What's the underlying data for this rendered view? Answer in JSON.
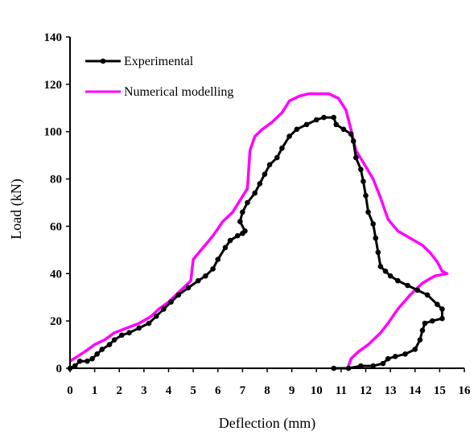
{
  "chart_data": {
    "type": "line",
    "title": "",
    "xlabel": "Deflection (mm)",
    "ylabel": "Load (kN)",
    "xlim": [
      0,
      16
    ],
    "ylim": [
      0,
      140
    ],
    "xticks": [
      "0",
      "1",
      "2",
      "3",
      "4",
      "5",
      "6",
      "7",
      "8",
      "9",
      "10",
      "11",
      "12",
      "13",
      "14",
      "15",
      "16"
    ],
    "yticks": [
      "0",
      "20",
      "40",
      "60",
      "80",
      "100",
      "120",
      "140"
    ],
    "grid": false,
    "legend_position": "top-left",
    "series": [
      {
        "name": "Experimental",
        "color": "#000000",
        "marker": "circle",
        "points": [
          [
            0,
            0
          ],
          [
            0.2,
            1
          ],
          [
            0.4,
            3
          ],
          [
            0.7,
            3
          ],
          [
            0.9,
            4
          ],
          [
            1.1,
            6
          ],
          [
            1.3,
            8
          ],
          [
            1.6,
            10
          ],
          [
            1.8,
            12
          ],
          [
            2.1,
            14
          ],
          [
            2.4,
            15
          ],
          [
            2.8,
            17
          ],
          [
            3.2,
            19
          ],
          [
            3.5,
            22
          ],
          [
            3.8,
            25
          ],
          [
            4.1,
            28
          ],
          [
            4.4,
            31
          ],
          [
            4.8,
            34
          ],
          [
            5.2,
            37
          ],
          [
            5.5,
            39
          ],
          [
            5.8,
            42
          ],
          [
            6.0,
            46
          ],
          [
            6.3,
            51
          ],
          [
            6.5,
            54
          ],
          [
            6.8,
            56
          ],
          [
            7.0,
            57
          ],
          [
            7.1,
            58
          ],
          [
            6.9,
            62
          ],
          [
            7.0,
            66
          ],
          [
            7.2,
            70
          ],
          [
            7.5,
            74
          ],
          [
            7.7,
            78
          ],
          [
            7.9,
            82
          ],
          [
            8.1,
            86
          ],
          [
            8.4,
            89
          ],
          [
            8.6,
            93
          ],
          [
            8.9,
            98
          ],
          [
            9.2,
            101
          ],
          [
            9.6,
            103
          ],
          [
            10.0,
            105
          ],
          [
            10.3,
            106
          ],
          [
            10.7,
            106
          ],
          [
            10.8,
            103
          ],
          [
            11.1,
            101
          ],
          [
            11.4,
            99
          ],
          [
            11.5,
            96
          ],
          [
            11.6,
            89
          ],
          [
            11.8,
            84
          ],
          [
            11.9,
            79
          ],
          [
            12.0,
            73
          ],
          [
            12.1,
            66
          ],
          [
            12.3,
            61
          ],
          [
            12.4,
            55
          ],
          [
            12.5,
            49
          ],
          [
            12.6,
            43
          ],
          [
            12.8,
            41
          ],
          [
            13.0,
            39
          ],
          [
            13.3,
            37
          ],
          [
            13.7,
            35
          ],
          [
            14.1,
            33
          ],
          [
            14.5,
            31
          ],
          [
            14.9,
            27
          ],
          [
            15.1,
            25
          ],
          [
            15.1,
            21
          ],
          [
            14.7,
            20
          ],
          [
            14.4,
            19
          ],
          [
            14.3,
            16
          ],
          [
            14.2,
            12
          ],
          [
            14.0,
            8
          ],
          [
            13.6,
            6
          ],
          [
            13.2,
            5
          ],
          [
            12.9,
            4
          ],
          [
            12.7,
            2
          ],
          [
            12.3,
            1
          ],
          [
            11.8,
            1
          ],
          [
            11.3,
            0
          ],
          [
            10.7,
            0
          ]
        ]
      },
      {
        "name": "Numerical modelling",
        "color": "#ff00ff",
        "marker": "none",
        "points": [
          [
            0,
            3
          ],
          [
            0.3,
            5
          ],
          [
            0.6,
            7
          ],
          [
            1.0,
            10
          ],
          [
            1.4,
            12
          ],
          [
            1.8,
            15
          ],
          [
            2.3,
            17
          ],
          [
            2.8,
            19
          ],
          [
            3.3,
            22
          ],
          [
            3.6,
            25
          ],
          [
            4.0,
            28
          ],
          [
            4.4,
            32
          ],
          [
            4.9,
            37
          ],
          [
            5.0,
            46
          ],
          [
            5.4,
            51
          ],
          [
            5.8,
            56
          ],
          [
            6.2,
            62
          ],
          [
            6.6,
            66
          ],
          [
            6.9,
            71
          ],
          [
            7.2,
            76
          ],
          [
            7.3,
            92
          ],
          [
            7.5,
            98
          ],
          [
            7.8,
            101
          ],
          [
            8.2,
            104
          ],
          [
            8.6,
            108
          ],
          [
            8.9,
            113
          ],
          [
            9.3,
            115
          ],
          [
            9.7,
            116
          ],
          [
            10.5,
            116
          ],
          [
            10.9,
            114
          ],
          [
            11.2,
            109
          ],
          [
            11.4,
            101
          ],
          [
            11.6,
            92
          ],
          [
            11.9,
            87
          ],
          [
            12.3,
            80
          ],
          [
            12.6,
            72
          ],
          [
            12.9,
            63
          ],
          [
            13.3,
            58
          ],
          [
            13.8,
            55
          ],
          [
            14.3,
            52
          ],
          [
            14.6,
            49
          ],
          [
            14.9,
            45
          ],
          [
            15.1,
            41
          ],
          [
            15.3,
            40
          ],
          [
            14.8,
            39
          ],
          [
            14.3,
            36
          ],
          [
            13.8,
            31
          ],
          [
            13.3,
            25
          ],
          [
            12.9,
            19
          ],
          [
            12.6,
            15
          ],
          [
            12.1,
            10
          ],
          [
            11.7,
            7
          ],
          [
            11.4,
            4
          ],
          [
            11.3,
            1
          ]
        ]
      }
    ]
  }
}
